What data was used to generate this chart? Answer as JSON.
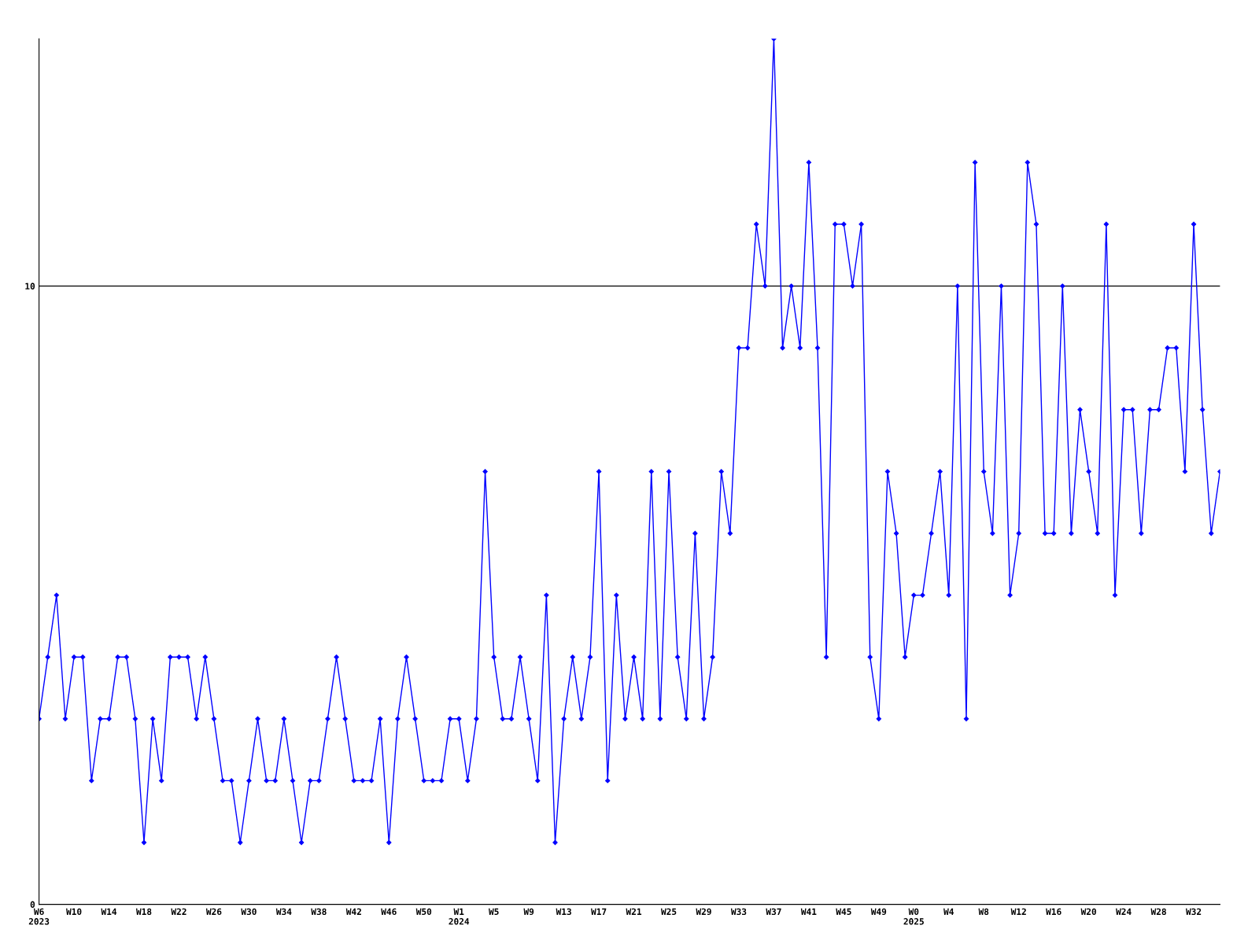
{
  "chart_data": {
    "type": "line",
    "categories": [
      "W6\n2023",
      null,
      null,
      null,
      "W10",
      null,
      null,
      null,
      "W14",
      null,
      null,
      null,
      "W18",
      null,
      null,
      null,
      "W22",
      null,
      null,
      null,
      "W26",
      null,
      null,
      null,
      "W30",
      null,
      null,
      null,
      "W34",
      null,
      null,
      null,
      "W38",
      null,
      null,
      null,
      "W42",
      null,
      null,
      null,
      "W46",
      null,
      null,
      null,
      "W50",
      null,
      null,
      null,
      "W1\n2024",
      null,
      null,
      null,
      "W5",
      null,
      null,
      null,
      "W9",
      null,
      null,
      null,
      "W13",
      null,
      null,
      null,
      "W17",
      null,
      null,
      null,
      "W21",
      null,
      null,
      null,
      "W25",
      null,
      null,
      null,
      "W29",
      null,
      null,
      null,
      "W33",
      null,
      null,
      null,
      "W37",
      null,
      null,
      null,
      "W41",
      null,
      null,
      null,
      "W45",
      null,
      null,
      null,
      "W49",
      null,
      null,
      null,
      "W0\n2025",
      null,
      null,
      null,
      "W4",
      null,
      null,
      null,
      "W8",
      null,
      null,
      null,
      "W12",
      null,
      null,
      null,
      "W16",
      null,
      null,
      null,
      "W20",
      null,
      null,
      null,
      "W24",
      null,
      null,
      null,
      "W28",
      null,
      null,
      null,
      "W32",
      null,
      null,
      null
    ],
    "series": [
      {
        "color": "#0000ff",
        "values": [
          3,
          4,
          5,
          3,
          4,
          4,
          2,
          3,
          3,
          4,
          4,
          3,
          1,
          3,
          2,
          4,
          4,
          4,
          3,
          4,
          3,
          2,
          2,
          1,
          2,
          3,
          2,
          2,
          3,
          2,
          1,
          2,
          2,
          3,
          4,
          3,
          2,
          2,
          2,
          3,
          1,
          3,
          4,
          3,
          2,
          2,
          2,
          3,
          3,
          2,
          3,
          7,
          4,
          3,
          3,
          4,
          3,
          2,
          5,
          1,
          3,
          4,
          3,
          4,
          7,
          2,
          5,
          3,
          4,
          3,
          7,
          3,
          7,
          4,
          3,
          6,
          3,
          4,
          7,
          6,
          9,
          9,
          11,
          10,
          14,
          9,
          10,
          9,
          12,
          9,
          4,
          11,
          11,
          10,
          11,
          4,
          3,
          7,
          6,
          4,
          5,
          5,
          6,
          7,
          5,
          10,
          3,
          12,
          7,
          6,
          10,
          5,
          6,
          12,
          11,
          6,
          6,
          10,
          6,
          8,
          7,
          6,
          11,
          5,
          8,
          8,
          6,
          8,
          8,
          9,
          9,
          7,
          11,
          8,
          6,
          7
        ]
      }
    ],
    "ylim": [
      0,
      14
    ],
    "yticks": [
      0,
      10
    ],
    "grid": "y",
    "legend": false,
    "marker": "diamond",
    "line_style": "solid"
  }
}
